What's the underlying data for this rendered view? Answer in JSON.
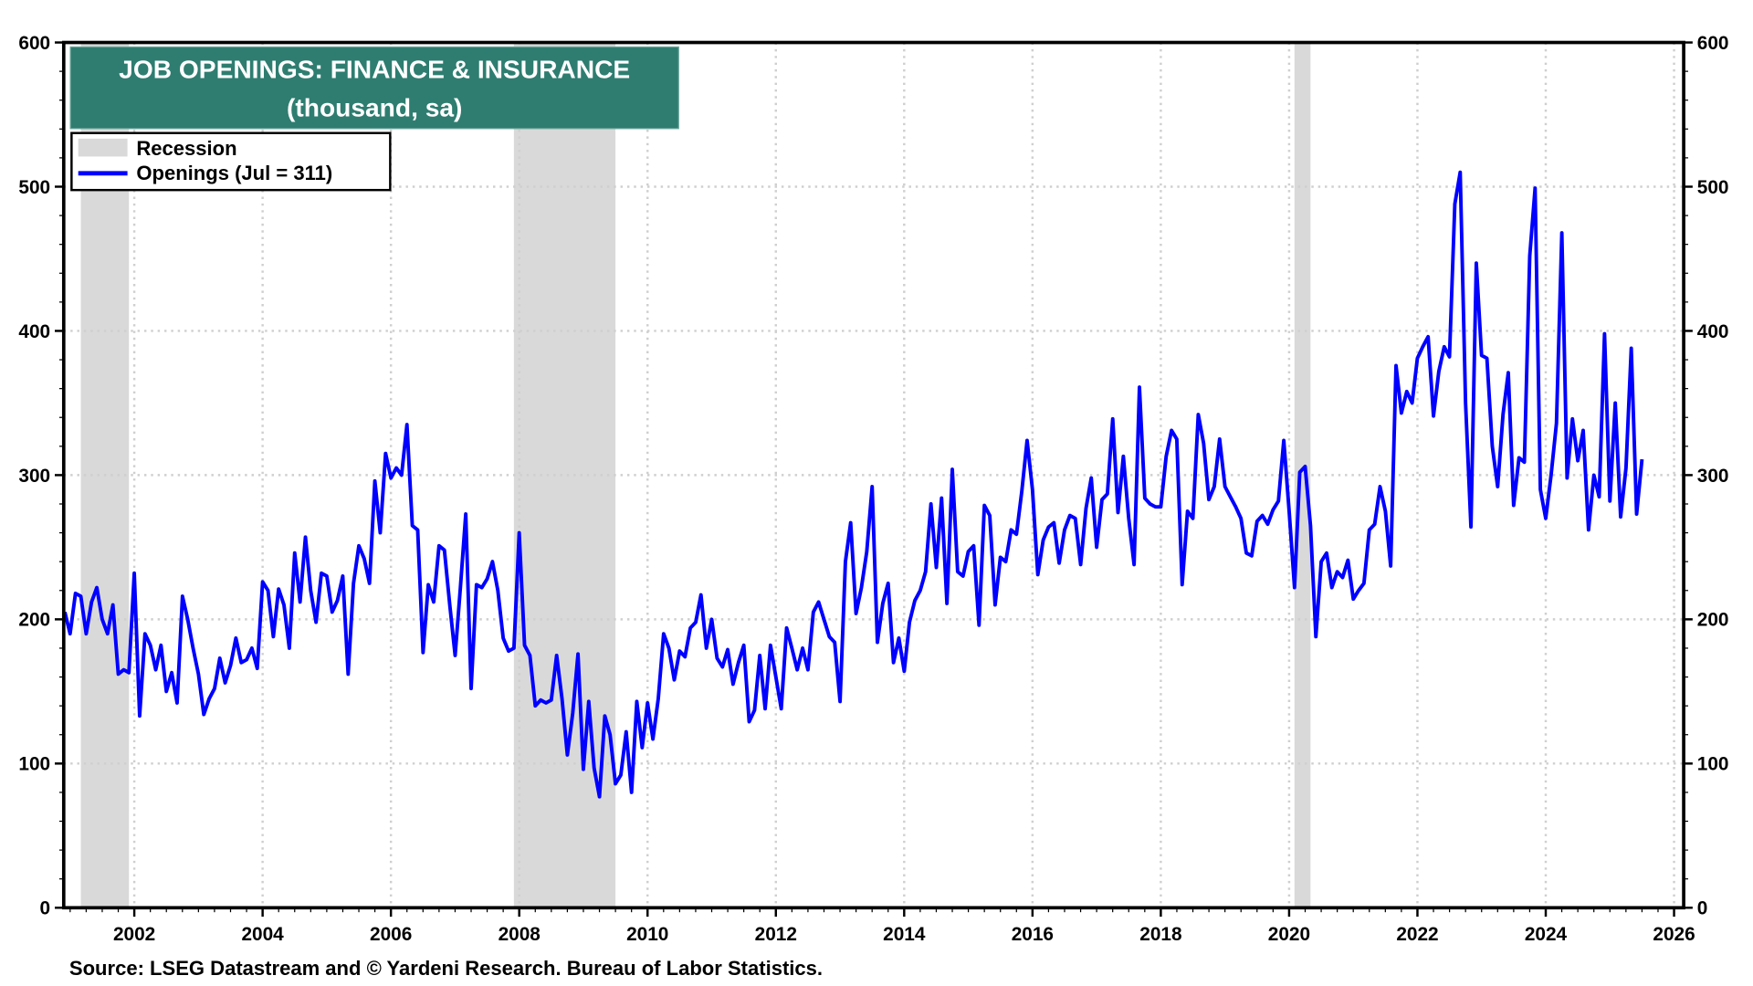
{
  "chart_data": {
    "type": "line",
    "title": "JOB OPENINGS: FINANCE & INSURANCE",
    "subtitle": "(thousand, sa)",
    "xlabel": "",
    "ylabel": "",
    "ylim": [
      0,
      600
    ],
    "xlim": [
      2000.9,
      2026.15
    ],
    "yticks": [
      0,
      100,
      200,
      300,
      400,
      500,
      600
    ],
    "xticks": [
      2002,
      2004,
      2006,
      2008,
      2010,
      2012,
      2014,
      2016,
      2018,
      2020,
      2022,
      2024,
      2026
    ],
    "grid": true,
    "legend_position": "top-left",
    "legend": [
      {
        "name": "Recession",
        "type": "shade"
      },
      {
        "name": "Openings (Jul = 311)",
        "type": "line"
      }
    ],
    "recessions": [
      {
        "start": "2001-03",
        "end": "2001-11"
      },
      {
        "start": "2007-12",
        "end": "2009-06"
      },
      {
        "start": "2020-02",
        "end": "2020-04"
      }
    ],
    "series": [
      {
        "name": "Openings",
        "color": "#0000ff",
        "start": "2000-12",
        "frequency": "monthly",
        "values": [
          205,
          190,
          218,
          216,
          190,
          212,
          222,
          200,
          190,
          210,
          162,
          165,
          163,
          232,
          133,
          190,
          182,
          165,
          182,
          150,
          163,
          142,
          216,
          200,
          180,
          162,
          134,
          145,
          152,
          173,
          156,
          168,
          187,
          170,
          172,
          180,
          166,
          226,
          220,
          188,
          221,
          210,
          180,
          246,
          212,
          257,
          220,
          198,
          232,
          230,
          205,
          213,
          230,
          162,
          225,
          251,
          242,
          225,
          296,
          260,
          315,
          298,
          305,
          300,
          335,
          265,
          262,
          177,
          224,
          212,
          251,
          248,
          210,
          175,
          222,
          273,
          152,
          224,
          222,
          228,
          240,
          220,
          187,
          178,
          180,
          260,
          182,
          175,
          140,
          144,
          142,
          144,
          175,
          145,
          106,
          135,
          176,
          96,
          143,
          97,
          77,
          133,
          120,
          86,
          92,
          122,
          80,
          143,
          111,
          142,
          117,
          145,
          190,
          180,
          158,
          178,
          174,
          194,
          198,
          217,
          180,
          200,
          173,
          167,
          179,
          155,
          170,
          182,
          129,
          137,
          175,
          138,
          182,
          160,
          138,
          194,
          180,
          165,
          180,
          165,
          205,
          212,
          200,
          188,
          184,
          143,
          240,
          267,
          204,
          222,
          247,
          292,
          184,
          211,
          225,
          170,
          187,
          164,
          198,
          213,
          220,
          233,
          280,
          236,
          284,
          211,
          304,
          233,
          230,
          247,
          251,
          196,
          279,
          272,
          210,
          243,
          240,
          262,
          259,
          289,
          324,
          290,
          231,
          255,
          264,
          267,
          239,
          262,
          272,
          270,
          238,
          277,
          298,
          250,
          283,
          287,
          339,
          274,
          313,
          270,
          238,
          361,
          284,
          280,
          278,
          278,
          313,
          331,
          325,
          224,
          275,
          270,
          342,
          322,
          283,
          292,
          325,
          292,
          285,
          278,
          270,
          246,
          244,
          268,
          272,
          266,
          276,
          282,
          324,
          275,
          222,
          302,
          306,
          265,
          188,
          240,
          246,
          222,
          233,
          229,
          241,
          214,
          220,
          225,
          262,
          266,
          292,
          275,
          237,
          376,
          343,
          358,
          350,
          381,
          389,
          396,
          341,
          372,
          389,
          382,
          488,
          510,
          350,
          264,
          447,
          383,
          381,
          320,
          292,
          342,
          371,
          279,
          312,
          309,
          452,
          499,
          290,
          270,
          300,
          336,
          468,
          298,
          339,
          310,
          331,
          262,
          300,
          285,
          398,
          282,
          350,
          271,
          305,
          388,
          273,
          311
        ]
      }
    ],
    "source": "Source: LSEG Datastream and © Yardeni Research. Bureau of Labor Statistics."
  },
  "colors": {
    "title_bg": "#2e7d70",
    "line": "#0000ff",
    "recession": "#d9d9d9"
  }
}
